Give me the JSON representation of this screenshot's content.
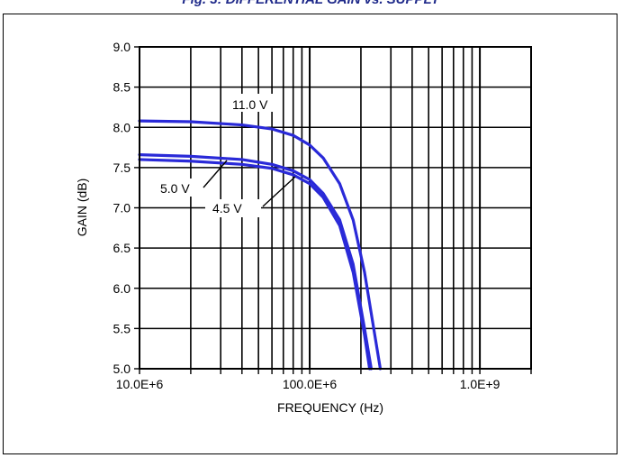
{
  "title": "Fig. 3: DIFFERENTIAL GAIN vs. SUPPLY",
  "chart_data": {
    "type": "line",
    "xlabel": "FREQUENCY (Hz)",
    "ylabel": "GAIN (dB)",
    "x_scale": "log",
    "xlim": [
      10000000,
      2000000000
    ],
    "ylim": [
      5.0,
      9.0
    ],
    "x_tick_labels": [
      {
        "value": 10000000,
        "label": "10.0E+6"
      },
      {
        "value": 100000000,
        "label": "100.0E+6"
      },
      {
        "value": 1000000000,
        "label": "1.0E+9"
      }
    ],
    "y_tick_labels": [
      {
        "value": 9.0,
        "label": "9.0"
      },
      {
        "value": 8.5,
        "label": "8.5"
      },
      {
        "value": 8.0,
        "label": "8.0"
      },
      {
        "value": 7.5,
        "label": "7.5"
      },
      {
        "value": 7.0,
        "label": "7.0"
      },
      {
        "value": 6.5,
        "label": "6.5"
      },
      {
        "value": 6.0,
        "label": "6.0"
      },
      {
        "value": 5.5,
        "label": "5.5"
      },
      {
        "value": 5.0,
        "label": "5.0"
      }
    ],
    "grid": true,
    "line_color": "#2a2ad8",
    "series": [
      {
        "label": "11.0 V",
        "x": [
          10000000,
          20000000,
          40000000,
          60000000,
          80000000,
          100000000,
          120000000,
          150000000,
          180000000,
          210000000,
          240000000,
          260000000
        ],
        "y": [
          8.08,
          8.07,
          8.03,
          7.98,
          7.9,
          7.78,
          7.62,
          7.3,
          6.85,
          6.2,
          5.45,
          5.0
        ]
      },
      {
        "label": "5.0 V",
        "x": [
          10000000,
          20000000,
          40000000,
          60000000,
          80000000,
          100000000,
          120000000,
          150000000,
          180000000,
          210000000,
          230000000
        ],
        "y": [
          7.66,
          7.64,
          7.6,
          7.54,
          7.46,
          7.35,
          7.18,
          6.85,
          6.3,
          5.5,
          5.0
        ]
      },
      {
        "label": "4.5 V",
        "x": [
          10000000,
          20000000,
          40000000,
          60000000,
          80000000,
          100000000,
          120000000,
          150000000,
          180000000,
          210000000,
          225000000
        ],
        "y": [
          7.6,
          7.58,
          7.54,
          7.49,
          7.41,
          7.3,
          7.13,
          6.78,
          6.2,
          5.42,
          5.0
        ]
      }
    ]
  }
}
